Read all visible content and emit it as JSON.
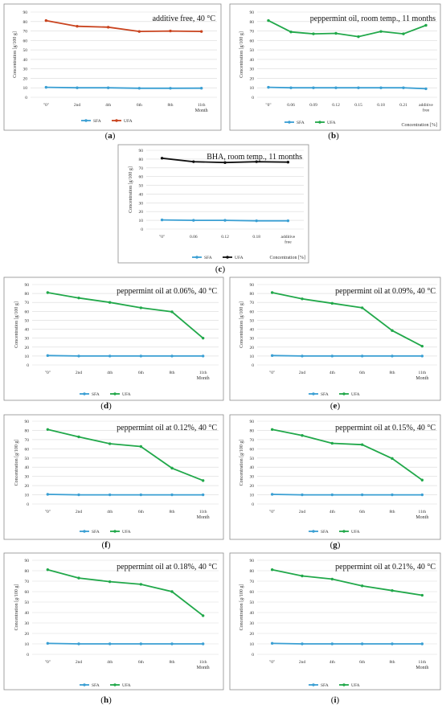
{
  "colors": {
    "SFA": "#3a9fd3",
    "UFA_red": "#c9431e",
    "UFA_green": "#21a84a",
    "UFA_black": "#111111",
    "frame": "#8c8c8c",
    "grid": "#d9d9d9"
  },
  "chart_data": [
    {
      "type": "line",
      "label": "(a)",
      "title": "additive free, 40 °C",
      "ylabel": "Concentration [g/100 g]",
      "xlabel": "Month",
      "categories": [
        "\"0\"",
        "2nd",
        "4th",
        "6th",
        "8th",
        "11th"
      ],
      "ylim": [
        0,
        90
      ],
      "yticks": [
        0,
        10,
        20,
        30,
        40,
        50,
        60,
        70,
        80,
        90
      ],
      "grid": true,
      "legend": "bottom",
      "series": [
        {
          "name": "SFA",
          "color": "#3a9fd3",
          "values": [
            10.5,
            10.0,
            10.0,
            9.5,
            9.5,
            9.6
          ]
        },
        {
          "name": "UFA",
          "color": "#c9431e",
          "values": [
            81.0,
            75.0,
            74.0,
            69.5,
            70.0,
            69.5
          ]
        }
      ]
    },
    {
      "type": "line",
      "label": "(b)",
      "title": "peppermint oil, room temp., 11 months",
      "ylabel": "Concentration [g/100 g]",
      "xlabel": "Concentration [%]",
      "categories": [
        "\"0\"",
        "0.06",
        "0.09",
        "0.12",
        "0.15",
        "0.18",
        "0.21",
        "additive free"
      ],
      "ylim": [
        0,
        90
      ],
      "yticks": [
        0,
        10,
        20,
        30,
        40,
        50,
        60,
        70,
        80,
        90
      ],
      "grid": true,
      "legend": "bottom",
      "series": [
        {
          "name": "SFA",
          "color": "#3a9fd3",
          "values": [
            10.5,
            10.0,
            10.0,
            10.0,
            10.0,
            10.0,
            10.0,
            9.0
          ]
        },
        {
          "name": "UFA",
          "color": "#21a84a",
          "values": [
            81.0,
            69.0,
            67.0,
            67.5,
            64.0,
            69.5,
            67.0,
            76.0
          ]
        }
      ]
    },
    {
      "type": "line",
      "label": "(c)",
      "title": "BHA, room temp., 11 months",
      "ylabel": "Concentration [g/100 g]",
      "xlabel": "Concentration [%]",
      "categories": [
        "\"0\"",
        "0.06",
        "0.12",
        "0.18",
        "additive free"
      ],
      "ylim": [
        0,
        90
      ],
      "yticks": [
        0,
        10,
        20,
        30,
        40,
        50,
        60,
        70,
        80,
        90
      ],
      "grid": true,
      "legend": "bottom",
      "series": [
        {
          "name": "SFA",
          "color": "#3a9fd3",
          "values": [
            10.5,
            10.0,
            10.0,
            9.5,
            9.5
          ]
        },
        {
          "name": "UFA",
          "color": "#111111",
          "values": [
            81.0,
            77.0,
            76.0,
            77.0,
            76.5
          ]
        }
      ]
    },
    {
      "type": "line",
      "label": "(d)",
      "title": "peppermint oil at 0.06%, 40 °C",
      "ylabel": "Concentration [g/100 g]",
      "xlabel": "Month",
      "categories": [
        "\"0\"",
        "2nd",
        "4th",
        "6th",
        "8th",
        "11th"
      ],
      "ylim": [
        0,
        90
      ],
      "yticks": [
        0,
        10,
        20,
        30,
        40,
        50,
        60,
        70,
        80,
        90
      ],
      "grid": true,
      "legend": "bottom",
      "series": [
        {
          "name": "SFA",
          "color": "#3a9fd3",
          "values": [
            10.5,
            10.0,
            10.0,
            10.0,
            10.0,
            10.0
          ]
        },
        {
          "name": "UFA",
          "color": "#21a84a",
          "values": [
            81.0,
            75.0,
            70.0,
            64.0,
            59.5,
            30.0
          ]
        }
      ]
    },
    {
      "type": "line",
      "label": "(e)",
      "title": "peppermint oil at 0.09%, 40 °C",
      "ylabel": "Concentration [g/100 g]",
      "xlabel": "Month",
      "categories": [
        "\"0\"",
        "2nd",
        "4th",
        "6th",
        "8th",
        "11th"
      ],
      "ylim": [
        0,
        90
      ],
      "yticks": [
        0,
        10,
        20,
        30,
        40,
        50,
        60,
        70,
        80,
        90
      ],
      "grid": true,
      "legend": "bottom",
      "series": [
        {
          "name": "SFA",
          "color": "#3a9fd3",
          "values": [
            10.5,
            10.0,
            10.0,
            10.0,
            10.0,
            10.0
          ]
        },
        {
          "name": "UFA",
          "color": "#21a84a",
          "values": [
            81.0,
            74.0,
            69.0,
            64.0,
            38.5,
            21.0
          ]
        }
      ]
    },
    {
      "type": "line",
      "label": "(f)",
      "title": "peppermint oil at 0.12%, 40 °C",
      "ylabel": "Concentration [g/100 g]",
      "xlabel": "Month",
      "categories": [
        "\"0\"",
        "2nd",
        "4th",
        "6th",
        "8th",
        "11th"
      ],
      "ylim": [
        0,
        90
      ],
      "yticks": [
        0,
        10,
        20,
        30,
        40,
        50,
        60,
        70,
        80,
        90
      ],
      "grid": true,
      "legend": "bottom",
      "series": [
        {
          "name": "SFA",
          "color": "#3a9fd3",
          "values": [
            10.5,
            10.0,
            10.0,
            10.0,
            10.0,
            10.0
          ]
        },
        {
          "name": "UFA",
          "color": "#21a84a",
          "values": [
            81.0,
            73.0,
            65.5,
            62.5,
            39.0,
            25.5
          ]
        }
      ]
    },
    {
      "type": "line",
      "label": "(g)",
      "title": "peppermint oil at 0.15%, 40 °C",
      "ylabel": "Concentration [g/100 g]",
      "xlabel": "Month",
      "categories": [
        "\"0\"",
        "2nd",
        "4th",
        "6th",
        "8th",
        "11th"
      ],
      "ylim": [
        0,
        90
      ],
      "yticks": [
        0,
        10,
        20,
        30,
        40,
        50,
        60,
        70,
        80,
        90
      ],
      "grid": true,
      "legend": "bottom",
      "series": [
        {
          "name": "SFA",
          "color": "#3a9fd3",
          "values": [
            10.5,
            10.0,
            10.0,
            10.0,
            10.0,
            10.0
          ]
        },
        {
          "name": "UFA",
          "color": "#21a84a",
          "values": [
            81.0,
            74.5,
            66.0,
            64.5,
            49.5,
            26.0
          ]
        }
      ]
    },
    {
      "type": "line",
      "label": "(h)",
      "title": "peppermint oil at 0.18%, 40 °C",
      "ylabel": "Concentration [g/100 g]",
      "xlabel": "Month",
      "categories": [
        "\"0\"",
        "2nd",
        "4th",
        "6th",
        "8th",
        "11th"
      ],
      "ylim": [
        0,
        90
      ],
      "yticks": [
        0,
        10,
        20,
        30,
        40,
        50,
        60,
        70,
        80,
        90
      ],
      "grid": true,
      "legend": "bottom",
      "series": [
        {
          "name": "SFA",
          "color": "#3a9fd3",
          "values": [
            10.5,
            10.0,
            10.0,
            10.0,
            10.0,
            10.0
          ]
        },
        {
          "name": "UFA",
          "color": "#21a84a",
          "values": [
            81.0,
            73.0,
            69.5,
            67.0,
            60.0,
            37.0
          ]
        }
      ]
    },
    {
      "type": "line",
      "label": "(i)",
      "title": "peppermint oil at 0.21%, 40 °C",
      "ylabel": "Concentration [g/100 g]",
      "xlabel": "Month",
      "categories": [
        "\"0\"",
        "2nd",
        "4th",
        "6th",
        "8th",
        "11th"
      ],
      "ylim": [
        0,
        90
      ],
      "yticks": [
        0,
        10,
        20,
        30,
        40,
        50,
        60,
        70,
        80,
        90
      ],
      "grid": true,
      "legend": "bottom",
      "series": [
        {
          "name": "SFA",
          "color": "#3a9fd3",
          "values": [
            10.5,
            10.0,
            10.0,
            10.0,
            10.0,
            10.0
          ]
        },
        {
          "name": "UFA",
          "color": "#21a84a",
          "values": [
            81.0,
            75.0,
            72.0,
            65.5,
            61.0,
            56.5
          ]
        }
      ]
    }
  ]
}
